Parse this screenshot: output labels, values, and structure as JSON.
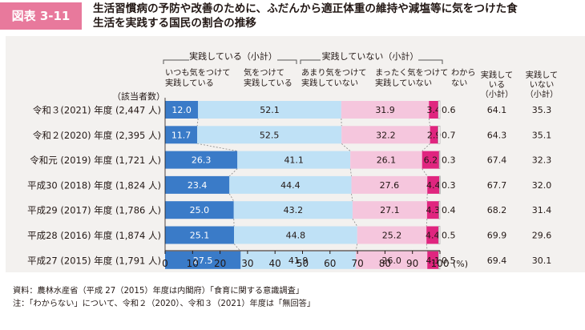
{
  "figure_label": "図表 3-11",
  "title_lines": [
    "生活習慣病の予防や改善のために、ふだんから適正体重の維持や減塩等に気をつけた食",
    "生活を実践する国民の割合の推移"
  ],
  "group_headers": {
    "practice": "実践している（小計）",
    "no_practice": "実践していない（小計）"
  },
  "category_headers": [
    [
      "いつも気をつけて",
      "実践している"
    ],
    [
      "気をつけて",
      "実践している"
    ],
    [
      "あまり気をつけて",
      "実践していない"
    ],
    [
      "まったく気をつけて",
      "実践していない"
    ],
    [
      "わから",
      "ない"
    ]
  ],
  "subtotal_headers": [
    [
      "実践して",
      "いる",
      "（小計）"
    ],
    [
      "実践して",
      "いない",
      "（小計）"
    ]
  ],
  "respondents_label": "（該当者数）",
  "unit_label": "(%)",
  "notes": [
    "資料：農林水産省（平成 27（2015）年度は内閣府）「食育に関する意識調査」",
    "注：「わからない」について、令和２（2020）、令和３（2021）年度は「無回答」"
  ],
  "chart_data": {
    "type": "stacked_bar_horizontal",
    "xlim": [
      0,
      100
    ],
    "xticks": [
      "0",
      "10",
      "20",
      "30",
      "40",
      "50",
      "60",
      "70",
      "80",
      "90",
      "100"
    ],
    "colors": [
      "#3a7bc8",
      "#bfe1f6",
      "#f5c6dd",
      "#e0257f",
      "#ffffff"
    ],
    "categories": [
      "令和３(2021) 年度 (2,447 人)",
      "令和２(2020) 年度 (2,395 人)",
      "令和元 (2019) 年度 (1,721 人)",
      "平成30 (2018) 年度 (1,824 人)",
      "平成29 (2017) 年度 (1,786 人)",
      "平成28 (2016) 年度 (1,874 人)",
      "平成27 (2015) 年度 (1,791 人)"
    ],
    "series": [
      {
        "name": "いつも気をつけて実践している",
        "values": [
          12.0,
          11.7,
          26.3,
          23.4,
          25.0,
          25.1,
          27.5
        ]
      },
      {
        "name": "気をつけて実践している",
        "values": [
          52.1,
          52.5,
          41.1,
          44.4,
          43.2,
          44.8,
          41.9
        ]
      },
      {
        "name": "あまり気をつけて実践していない",
        "values": [
          31.9,
          32.2,
          26.1,
          27.6,
          27.1,
          25.2,
          26.0
        ]
      },
      {
        "name": "まったく気をつけて実践していない",
        "values": [
          3.4,
          2.9,
          6.2,
          4.4,
          4.3,
          4.4,
          4.1
        ]
      },
      {
        "name": "わからない",
        "values": [
          0.6,
          0.7,
          0.3,
          0.3,
          0.4,
          0.5,
          0.5
        ]
      }
    ],
    "value_labels": [
      [
        "12.0",
        "52.1",
        "31.9",
        "3.4",
        "0.6"
      ],
      [
        "11.7",
        "52.5",
        "32.2",
        "2.9",
        "0.7"
      ],
      [
        "26.3",
        "41.1",
        "26.1",
        "6.2",
        "0.3"
      ],
      [
        "23.4",
        "44.4",
        "27.6",
        "4.4",
        "0.3"
      ],
      [
        "25.0",
        "43.2",
        "27.1",
        "4.3",
        "0.4"
      ],
      [
        "25.1",
        "44.8",
        "25.2",
        "4.4",
        "0.5"
      ],
      [
        "27.5",
        "41.9",
        "26.0",
        "4.1",
        "0.5"
      ]
    ],
    "subtotals": {
      "practice": [
        "64.1",
        "64.3",
        "67.4",
        "67.7",
        "68.2",
        "69.9",
        "69.4"
      ],
      "no_practice": [
        "35.3",
        "35.1",
        "32.3",
        "32.0",
        "31.4",
        "29.6",
        "30.1"
      ]
    }
  }
}
